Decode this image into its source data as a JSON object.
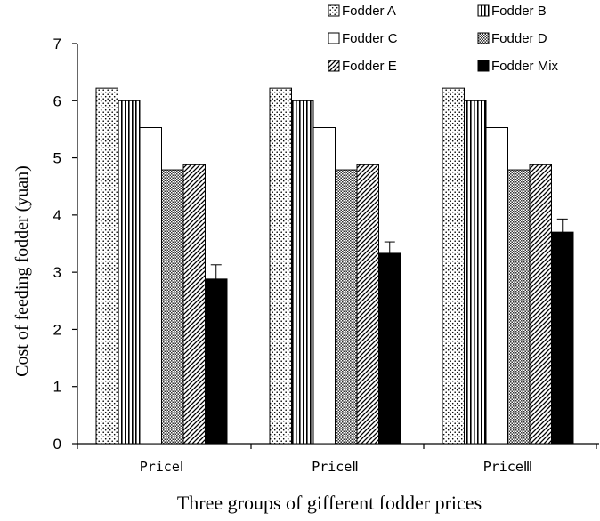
{
  "chart_data": {
    "type": "bar",
    "categories": [
      "PriceⅠ",
      "PriceⅡ",
      "PriceⅢ"
    ],
    "series": [
      {
        "name": "Fodder A",
        "values": [
          6.22,
          6.22,
          6.22
        ],
        "pattern": "dots"
      },
      {
        "name": "Fodder B",
        "values": [
          6.0,
          6.0,
          6.0
        ],
        "pattern": "vlines"
      },
      {
        "name": "Fodder C",
        "values": [
          5.53,
          5.53,
          5.53
        ],
        "pattern": "white"
      },
      {
        "name": "Fodder D",
        "values": [
          4.79,
          4.79,
          4.79
        ],
        "pattern": "grid"
      },
      {
        "name": "Fodder E",
        "values": [
          4.88,
          4.88,
          4.88
        ],
        "pattern": "diag"
      },
      {
        "name": "Fodder Mix",
        "values": [
          2.88,
          3.33,
          3.7
        ],
        "errors": [
          0.25,
          0.2,
          0.23
        ],
        "pattern": "solid"
      }
    ],
    "xlabel": "Three groups of gifferent  fodder prices",
    "ylabel": "Cost  of  feeding fodder (yuan)",
    "ylim": [
      0,
      7
    ],
    "yticks": [
      0,
      1,
      2,
      3,
      4,
      5,
      6,
      7
    ],
    "grid": false,
    "legend": "top-right"
  }
}
